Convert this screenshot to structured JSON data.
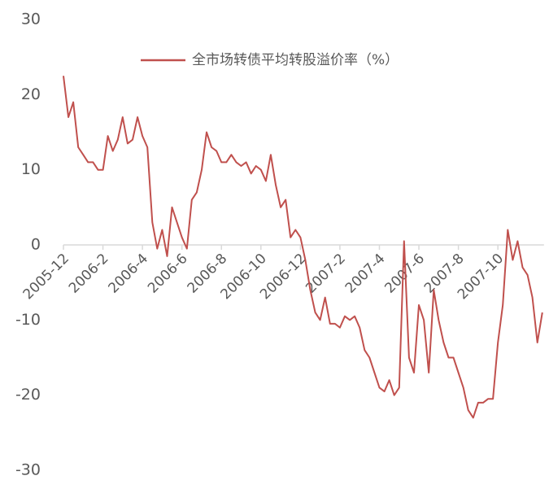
{
  "chart_data": {
    "type": "line",
    "categories": [
      "2005-12",
      null,
      null,
      null,
      null,
      null,
      null,
      null,
      "2006-2",
      null,
      null,
      null,
      null,
      null,
      null,
      null,
      "2006-4",
      null,
      null,
      null,
      null,
      null,
      null,
      null,
      "2006-6",
      null,
      null,
      null,
      null,
      null,
      null,
      null,
      "2006-8",
      null,
      null,
      null,
      null,
      null,
      null,
      null,
      "2006-10",
      null,
      null,
      null,
      null,
      null,
      null,
      null,
      "2006-12",
      null,
      null,
      null,
      null,
      null,
      null,
      null,
      "2007-2",
      null,
      null,
      null,
      null,
      null,
      null,
      null,
      "2007-4",
      null,
      null,
      null,
      null,
      null,
      null,
      null,
      "2007-6",
      null,
      null,
      null,
      null,
      null,
      null,
      null,
      "2007-8",
      null,
      null,
      null,
      null,
      null,
      null,
      null,
      "2007-10",
      null,
      null,
      null,
      null,
      null,
      null,
      null,
      null,
      null
    ],
    "series": [
      {
        "name": "全市场转债平均转股溢价率（%）",
        "color": "#c0504d",
        "values": [
          22.5,
          17,
          19,
          13,
          12,
          11,
          11,
          10,
          10,
          14.5,
          12.5,
          14,
          17,
          13.5,
          14,
          17,
          14.5,
          13,
          3,
          -0.5,
          2,
          -1.5,
          5,
          3,
          1,
          -0.5,
          6,
          7,
          10,
          15,
          13,
          12.5,
          11,
          11,
          12,
          11,
          10.5,
          11,
          9.5,
          10.5,
          10,
          8.5,
          12,
          8,
          5,
          6,
          1,
          2,
          1,
          -2,
          -6,
          -9,
          -10,
          -7,
          -10.5,
          -10.5,
          -11,
          -9.5,
          -10,
          -9.5,
          -11,
          -14,
          -15,
          -17,
          -19,
          -19.5,
          -18,
          -20,
          -19,
          0.5,
          -15,
          -17,
          -8,
          -10,
          -17,
          -6,
          -10,
          -13,
          -15,
          -15,
          -17,
          -19,
          -22,
          -23,
          -21,
          -21,
          -20.5,
          -20.5,
          -13,
          -8,
          2,
          -2,
          0.5,
          -3,
          -4,
          -7,
          -13,
          -9
        ]
      }
    ],
    "ylim": [
      -30,
      30
    ],
    "yticks": [
      -30,
      -20,
      -10,
      0,
      10,
      20,
      30
    ]
  }
}
